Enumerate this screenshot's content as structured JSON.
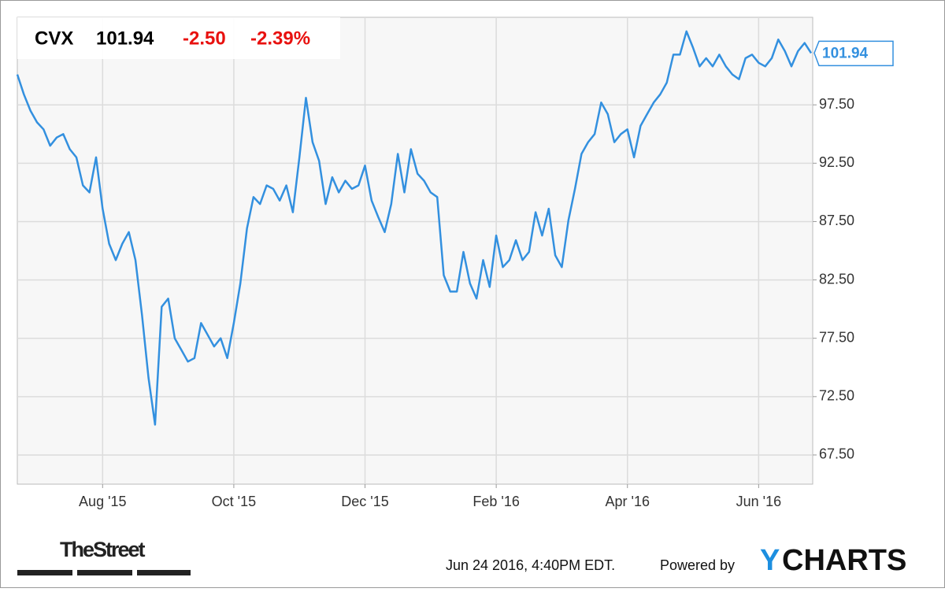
{
  "chart_data": {
    "type": "line",
    "header": {
      "symbol": "CVX",
      "price": "101.94",
      "change": "-2.50",
      "change_percent": "-2.39%"
    },
    "categories": [
      null,
      null,
      null,
      null,
      null,
      null,
      null,
      null,
      null,
      null,
      null,
      null,
      null,
      "Aug '15",
      null,
      null,
      null,
      null,
      null,
      null,
      null,
      null,
      null,
      null,
      null,
      null,
      null,
      null,
      null,
      null,
      null,
      null,
      null,
      "Oct '15",
      null,
      null,
      null,
      null,
      null,
      null,
      null,
      null,
      null,
      null,
      null,
      null,
      null,
      null,
      null,
      null,
      null,
      null,
      null,
      "Dec '15",
      null,
      null,
      null,
      null,
      null,
      null,
      null,
      null,
      null,
      null,
      null,
      null,
      null,
      null,
      null,
      null,
      null,
      null,
      null,
      "Feb '16",
      null,
      null,
      null,
      null,
      null,
      null,
      null,
      null,
      null,
      null,
      null,
      null,
      null,
      null,
      null,
      null,
      null,
      null,
      null,
      "Apr '16",
      null,
      null,
      null,
      null,
      null,
      null,
      null,
      null,
      null,
      null,
      null,
      null,
      null,
      null,
      null,
      null,
      null,
      null,
      null,
      "Jun '16",
      null,
      null,
      null,
      null,
      null,
      null,
      null,
      null
    ],
    "series": [
      {
        "name": "CVX",
        "color": "#3390df",
        "values": [
          100.1,
          98.4,
          97.0,
          96.0,
          95.4,
          94.0,
          94.7,
          95.0,
          93.7,
          93.0,
          90.6,
          90.0,
          93.0,
          88.6,
          85.6,
          84.2,
          85.6,
          86.6,
          84.2,
          79.5,
          74.1,
          70.1,
          80.2,
          80.9,
          77.5,
          76.5,
          75.5,
          75.8,
          78.8,
          77.8,
          76.8,
          77.5,
          75.8,
          78.8,
          82.2,
          86.9,
          89.6,
          89.0,
          90.6,
          90.3,
          89.3,
          90.6,
          88.3,
          93.0,
          98.1,
          94.3,
          92.7,
          89.0,
          91.3,
          90.0,
          91.0,
          90.3,
          90.6,
          92.3,
          89.3,
          87.9,
          86.6,
          89.0,
          93.3,
          90.0,
          93.7,
          91.6,
          91.0,
          90.0,
          89.6,
          82.9,
          81.5,
          81.5,
          84.9,
          82.2,
          80.9,
          84.2,
          81.9,
          86.3,
          83.6,
          84.2,
          85.9,
          84.2,
          84.9,
          88.3,
          86.3,
          88.6,
          84.6,
          83.6,
          87.6,
          90.3,
          93.3,
          94.3,
          95.0,
          97.7,
          96.7,
          94.3,
          95.0,
          95.4,
          93.0,
          95.7,
          96.7,
          97.7,
          98.4,
          99.4,
          101.8,
          101.8,
          103.8,
          102.4,
          100.8,
          101.5,
          100.8,
          101.8,
          100.8,
          100.1,
          99.7,
          101.5,
          101.8,
          101.1,
          100.8,
          101.5,
          103.1,
          102.1,
          100.8,
          102.1,
          102.8,
          101.94
        ]
      }
    ],
    "ylim": [
      65,
      105
    ],
    "yticks": [
      {
        "value": 67.5,
        "label": "67.50"
      },
      {
        "value": 72.5,
        "label": "72.50"
      },
      {
        "value": 77.5,
        "label": "77.50"
      },
      {
        "value": 82.5,
        "label": "82.50"
      },
      {
        "value": 87.5,
        "label": "87.50"
      },
      {
        "value": 92.5,
        "label": "92.50"
      },
      {
        "value": 97.5,
        "label": "97.50"
      }
    ],
    "grid": true
  },
  "footer": {
    "source_logo": "TheStreet",
    "timestamp": "Jun 24 2016, 4:40PM EDT.",
    "powered_by": "Powered by",
    "brand_initial": "Y",
    "brand_rest": "CHARTS"
  }
}
